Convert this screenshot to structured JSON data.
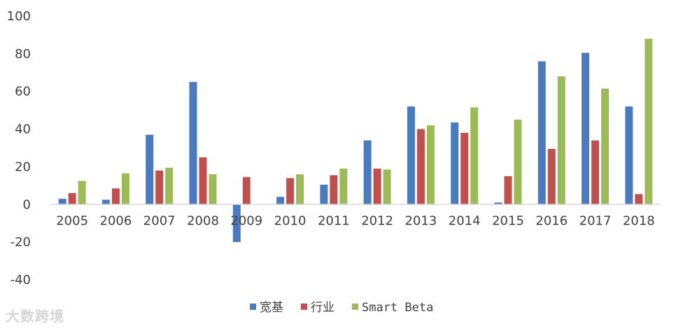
{
  "chart_data": {
    "type": "bar",
    "title": "",
    "xlabel": "",
    "ylabel": "",
    "ylim": [
      -40,
      100
    ],
    "yticks": [
      -40,
      -20,
      0,
      20,
      40,
      60,
      80,
      100
    ],
    "categories": [
      "2005",
      "2006",
      "2007",
      "2008",
      "2009",
      "2010",
      "2011",
      "2012",
      "2013",
      "2014",
      "2015",
      "2016",
      "2017",
      "2018"
    ],
    "series": [
      {
        "name": "宽基",
        "color": "#4a7bbf",
        "values": [
          3,
          2.5,
          37,
          65,
          -20,
          4,
          10.5,
          34,
          52,
          43.5,
          1,
          76,
          80.5,
          52
        ]
      },
      {
        "name": "行业",
        "color": "#c0504d",
        "values": [
          6,
          8.5,
          18,
          25,
          14.5,
          14,
          15.5,
          19,
          40,
          38,
          15,
          29.5,
          34,
          5.5
        ]
      },
      {
        "name": "Smart Beta",
        "color": "#9bbb59",
        "values": [
          12.5,
          16.5,
          19.5,
          16,
          0,
          16,
          19,
          18.5,
          42,
          51.5,
          45,
          68,
          61.5,
          88
        ]
      }
    ],
    "grid": false,
    "legend_position": "bottom"
  },
  "watermark": "大数跨境"
}
